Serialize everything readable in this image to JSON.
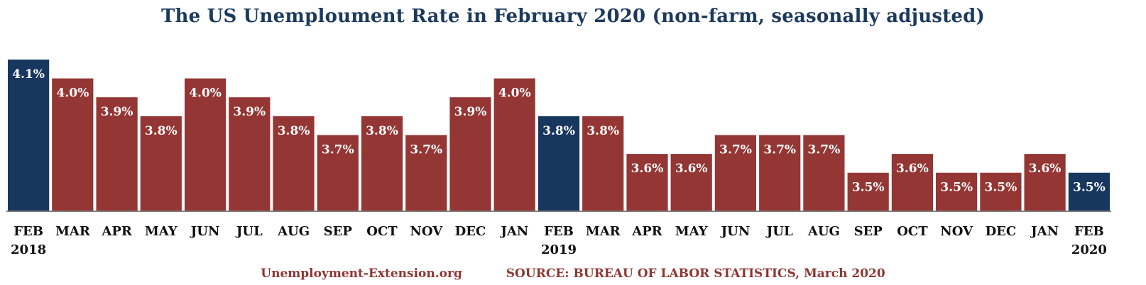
{
  "chart_data": {
    "type": "bar",
    "title": "The US Unemploument Rate in February 2020 (non-farm, seasonally adjusted)",
    "categories": [
      "FEB 2018",
      "MAR",
      "APR",
      "MAY",
      "JUN",
      "JUL",
      "AUG",
      "SEP",
      "OCT",
      "NOV",
      "DEC",
      "JAN",
      "FEB 2019",
      "MAR",
      "APR",
      "MAY",
      "JUN",
      "JUL",
      "AUG",
      "SEP",
      "OCT",
      "NOV",
      "DEC",
      "JAN",
      "FEB 2020"
    ],
    "tick_lines": [
      [
        "FEB",
        "2018"
      ],
      [
        "MAR"
      ],
      [
        "APR"
      ],
      [
        "MAY"
      ],
      [
        "JUN"
      ],
      [
        "JUL"
      ],
      [
        "AUG"
      ],
      [
        "SEP"
      ],
      [
        "OCT"
      ],
      [
        "NOV"
      ],
      [
        "DEC"
      ],
      [
        "JAN"
      ],
      [
        "FEB",
        "2019"
      ],
      [
        "MAR"
      ],
      [
        "APR"
      ],
      [
        "MAY"
      ],
      [
        "JUN"
      ],
      [
        "JUL"
      ],
      [
        "AUG"
      ],
      [
        "SEP"
      ],
      [
        "OCT"
      ],
      [
        "NOV"
      ],
      [
        "DEC"
      ],
      [
        "JAN"
      ],
      [
        "FEB",
        "2020"
      ]
    ],
    "values": [
      4.1,
      4.0,
      3.9,
      3.8,
      4.0,
      3.9,
      3.8,
      3.7,
      3.8,
      3.7,
      3.9,
      4.0,
      3.8,
      3.8,
      3.6,
      3.6,
      3.7,
      3.7,
      3.7,
      3.5,
      3.6,
      3.5,
      3.5,
      3.6,
      3.5
    ],
    "data_labels": [
      "4.1%",
      "4.0%",
      "3.9%",
      "3.8%",
      "4.0%",
      "3.9%",
      "3.8%",
      "3.7%",
      "3.8%",
      "3.7%",
      "3.9%",
      "4.0%",
      "3.8%",
      "3.8%",
      "3.6%",
      "3.6%",
      "3.7%",
      "3.7%",
      "3.7%",
      "3.5%",
      "3.6%",
      "3.5%",
      "3.5%",
      "3.6%",
      "3.5%"
    ],
    "highlighted": [
      0,
      12,
      24
    ],
    "ylim": [
      3.3,
      4.1
    ],
    "grid": false,
    "colors": {
      "default": "#943634",
      "highlight": "#17375e",
      "axis": "#7f7f7f"
    }
  },
  "footer": {
    "site": "Unemployment-Extension.org",
    "source": "SOURCE: BUREAU OF LABOR STATISTICS, March 2020"
  }
}
